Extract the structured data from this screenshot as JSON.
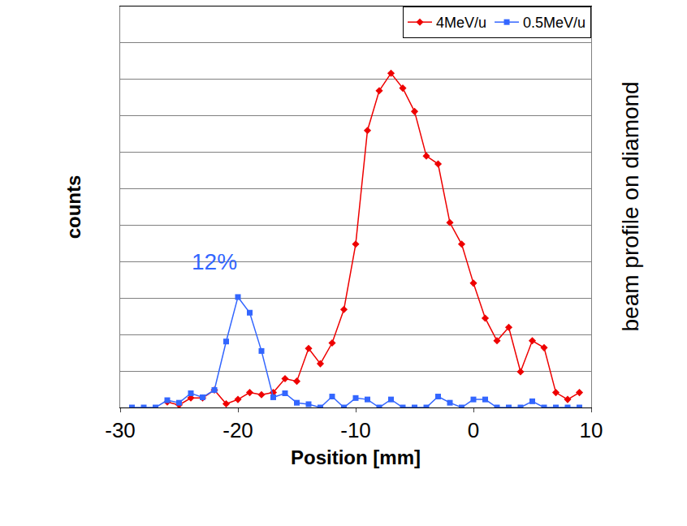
{
  "chart_data": {
    "type": "line",
    "x_label": "Position [mm]",
    "y_label": "counts",
    "side_text": "beam profile on diamond",
    "xlim": [
      -30,
      10
    ],
    "xticks": [
      -30,
      -20,
      -10,
      0,
      10
    ],
    "ylim": [
      0,
      11
    ],
    "yticks": [
      0,
      1,
      2,
      3,
      4,
      5,
      6,
      7,
      8,
      9,
      10,
      11
    ],
    "grid": true,
    "tick_labels": "x",
    "legend": "top right",
    "x": [
      -29,
      -28,
      -27,
      -26,
      -25,
      -24,
      -23,
      -22,
      -21,
      -20,
      -19,
      -18,
      -17,
      -16,
      -15,
      -14,
      -13,
      -12,
      -11,
      -10,
      -9,
      -8,
      -7,
      -6,
      -5,
      -4,
      -3,
      -2,
      -1,
      0,
      1,
      2,
      3,
      4,
      5,
      6,
      7,
      8,
      9
    ],
    "series": [
      {
        "name": "4MeV/u",
        "color": "#ee0000",
        "marker": "diamond",
        "values": [
          null,
          null,
          null,
          0.15,
          0.07,
          0.26,
          0.26,
          0.48,
          0.1,
          0.22,
          0.41,
          0.35,
          0.41,
          0.79,
          0.72,
          1.62,
          1.2,
          1.77,
          2.69,
          4.48,
          7.6,
          8.69,
          9.17,
          8.76,
          8.12,
          6.9,
          6.68,
          5.07,
          4.48,
          3.41,
          2.45,
          1.83,
          2.2,
          0.98,
          1.83,
          1.64,
          0.41,
          0.22,
          0.41
        ]
      },
      {
        "name": "0.5MeV/u",
        "color": "#3366ff",
        "marker": "square",
        "values": [
          0,
          0,
          0,
          0.2,
          0.13,
          0.39,
          0.28,
          0.48,
          1.81,
          3.03,
          2.6,
          1.55,
          0.28,
          0.39,
          0.13,
          0.09,
          0,
          0.3,
          0,
          0.26,
          0.22,
          0,
          0.22,
          0,
          0,
          0,
          0.3,
          0.13,
          0,
          0.22,
          0.22,
          0,
          0,
          0,
          0.17,
          0,
          0,
          0,
          0
        ]
      }
    ],
    "annotations": [
      {
        "text": "12%",
        "x": -22,
        "y": 3.6,
        "color": "#3366ff"
      }
    ]
  }
}
